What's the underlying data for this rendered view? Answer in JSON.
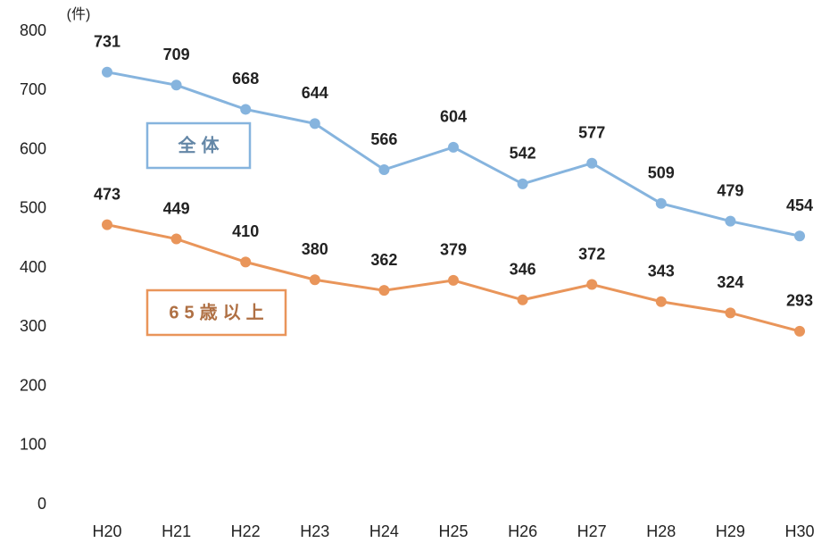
{
  "chart_data": {
    "type": "line",
    "y_label": "(件)",
    "categories": [
      "H20",
      "H21",
      "H22",
      "H23",
      "H24",
      "H25",
      "H26",
      "H27",
      "H28",
      "H29",
      "H30"
    ],
    "series": [
      {
        "name": "全体",
        "color": "#86b4de",
        "values": [
          731,
          709,
          668,
          644,
          566,
          604,
          542,
          577,
          509,
          479,
          454
        ]
      },
      {
        "name": "65歳以上",
        "color": "#e9955a",
        "values": [
          473,
          449,
          410,
          380,
          362,
          379,
          346,
          372,
          343,
          324,
          293
        ]
      }
    ],
    "ylim": [
      0,
      800
    ],
    "yticks": [
      0,
      100,
      200,
      300,
      400,
      500,
      600,
      700,
      800
    ],
    "grid": false
  }
}
